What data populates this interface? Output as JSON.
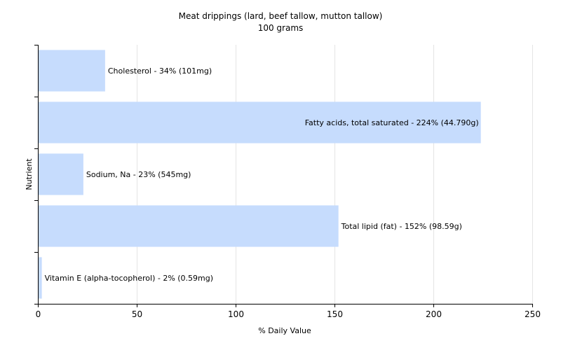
{
  "chart_data": {
    "type": "bar",
    "orientation": "horizontal",
    "title": "Meat drippings (lard, beef tallow, mutton tallow)",
    "subtitle": "100 grams",
    "xlabel": "% Daily Value",
    "ylabel": "Nutrient",
    "xlim": [
      0,
      250
    ],
    "xticks": [
      0,
      50,
      100,
      150,
      200,
      250
    ],
    "grid": true,
    "bar_color": "#c6dcfd",
    "categories": [
      "Cholesterol",
      "Fatty acids, total saturated",
      "Sodium, Na",
      "Total lipid (fat)",
      "Vitamin E (alpha-tocopherol)"
    ],
    "values": [
      34,
      224,
      23,
      152,
      2
    ],
    "data_labels": [
      "Cholesterol - 34% (101mg)",
      "Fatty acids, total saturated - 224% (44.790g)",
      "Sodium, Na - 23% (545mg)",
      "Total lipid (fat) - 152% (98.59g)",
      "Vitamin E (alpha-tocopherol) - 2% (0.59mg)"
    ]
  }
}
